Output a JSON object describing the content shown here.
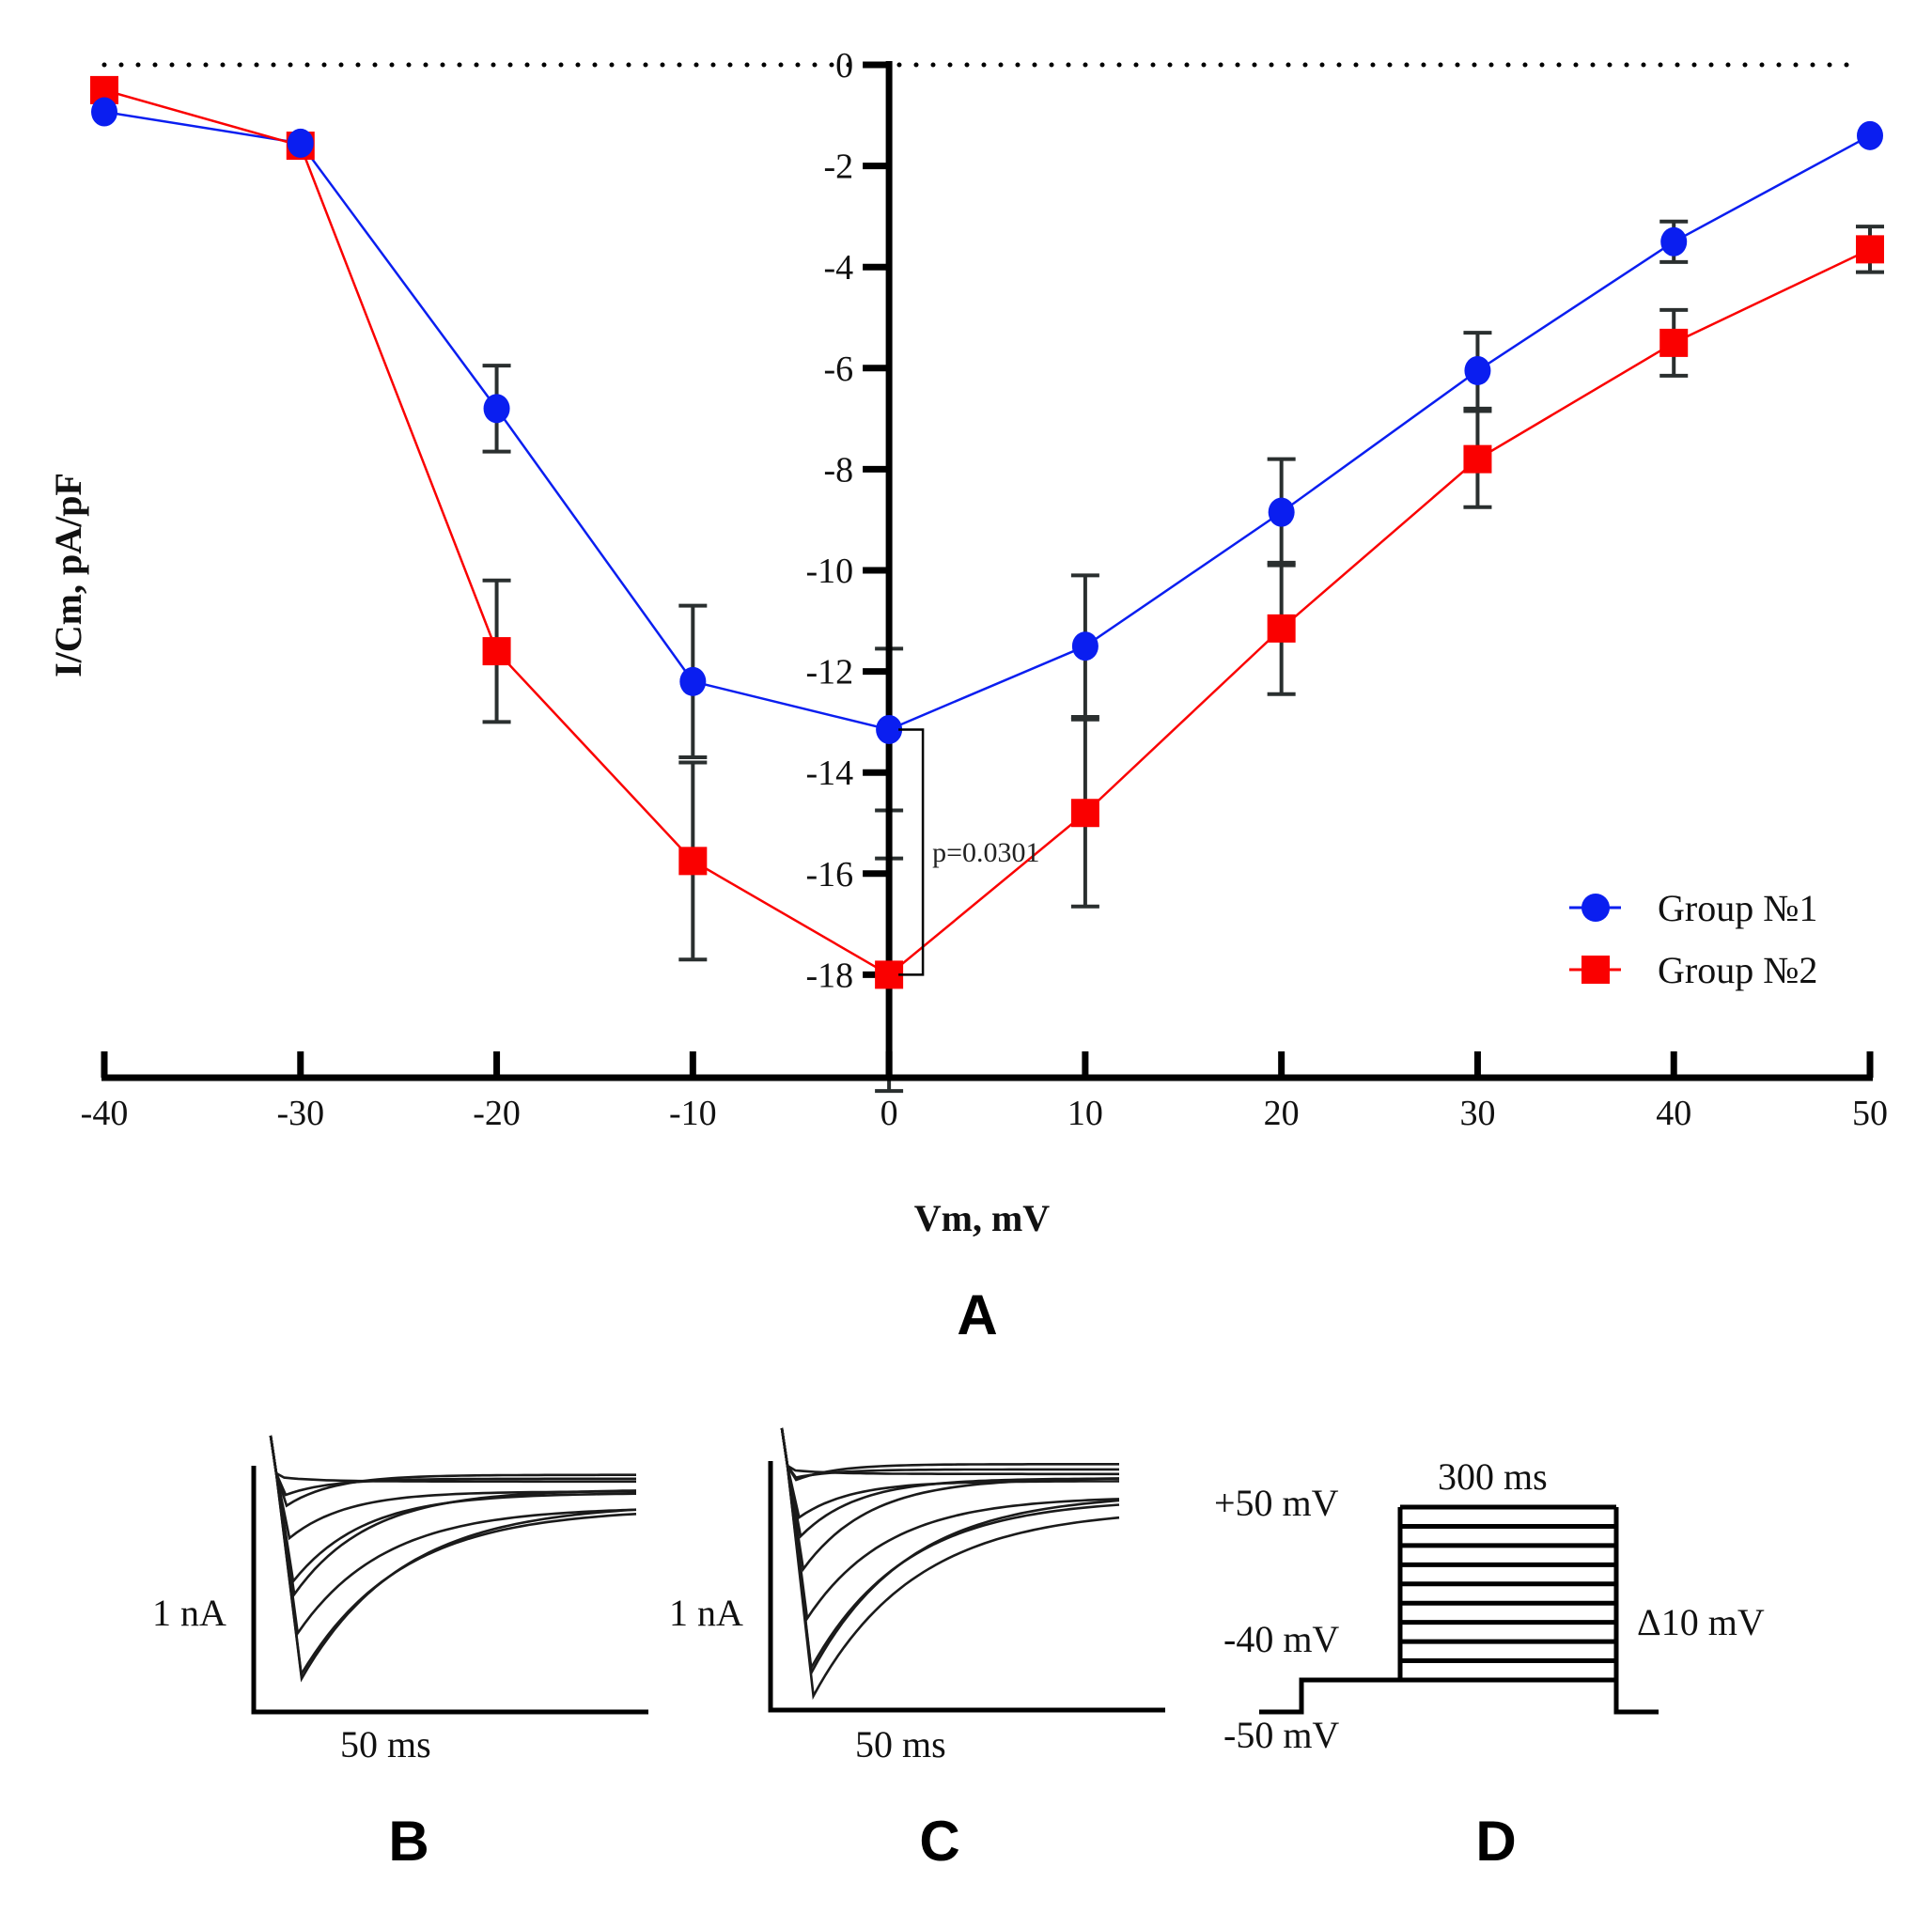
{
  "figure": {
    "panel_letters": [
      "A",
      "B",
      "C",
      "D"
    ]
  },
  "chart_data": [
    {
      "panel": "A",
      "type": "line",
      "title": "",
      "xlabel": "Vm, mV",
      "ylabel": "I/Cm, pA/pF",
      "x": [
        -40,
        -30,
        -20,
        -10,
        0,
        10,
        20,
        30,
        40,
        50
      ],
      "xticks": [
        "-40",
        "-30",
        "-20",
        "-10",
        "0",
        "10",
        "20",
        "30",
        "40",
        "50"
      ],
      "yticks": [
        "0",
        "-2",
        "-4",
        "-6",
        "-8",
        "-10",
        "-12",
        "-14",
        "-16",
        "-18"
      ],
      "xlim": [
        -40,
        50
      ],
      "ylim": [
        -20,
        0
      ],
      "zero_reference_line": "dotted",
      "grid": false,
      "legend_position": "bottom-right",
      "series": [
        {
          "name": "Group №1",
          "marker": "circle",
          "color": "#0a1ef0",
          "values": [
            -0.93,
            -1.55,
            -6.8,
            -12.2,
            -13.15,
            -11.5,
            -8.85,
            -6.05,
            -3.5,
            -1.4
          ],
          "error": [
            null,
            null,
            0.85,
            1.5,
            1.6,
            1.4,
            1.05,
            0.75,
            0.4,
            null
          ]
        },
        {
          "name": "Group №2",
          "marker": "square",
          "color": "#fa0000",
          "values": [
            -0.5,
            -1.6,
            -11.6,
            -15.75,
            -18.0,
            -14.8,
            -11.15,
            -7.8,
            -5.5,
            -3.65
          ],
          "error": [
            null,
            null,
            1.4,
            1.95,
            2.3,
            1.85,
            1.3,
            0.95,
            0.65,
            0.45
          ]
        }
      ],
      "annotations": [
        {
          "text": "p=0.0301",
          "x": 0,
          "between": [
            "Group №1",
            "Group №2"
          ]
        }
      ]
    },
    {
      "panel": "B",
      "type": "line",
      "description": "Current traces, Group №1",
      "scalebar_y": "1 nA",
      "scalebar_x": "50 ms",
      "peak_depths_relative": [
        0.02,
        0.1,
        0.15,
        0.3,
        0.5,
        0.56,
        0.74,
        0.93,
        0.95
      ]
    },
    {
      "panel": "C",
      "type": "line",
      "description": "Current traces, Group №2",
      "scalebar_y": "1 nA",
      "scalebar_x": "50 ms",
      "peak_depths_relative": [
        0.02,
        0.05,
        0.06,
        0.22,
        0.3,
        0.44,
        0.65,
        0.86,
        0.88,
        0.98
      ]
    },
    {
      "panel": "D",
      "type": "line",
      "description": "Voltage step protocol",
      "labels": {
        "top": "+50 mV",
        "mid": "-40 mV",
        "hold": "-50 mV",
        "duration": "300 ms",
        "step": "Δ10 mV"
      },
      "holding_mv": -50,
      "steps_mv": [
        -40,
        -30,
        -20,
        -10,
        0,
        10,
        20,
        30,
        40,
        50
      ],
      "step_duration_ms": 300
    }
  ]
}
